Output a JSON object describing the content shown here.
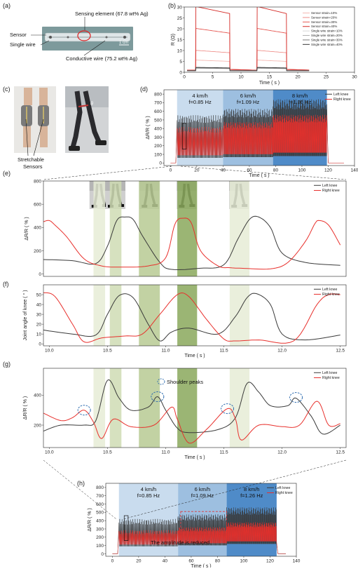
{
  "panels": {
    "a": {
      "label": "(a)",
      "sensing_element": "Sensing element (67.8 wt% Ag)",
      "sensor": "Sensor",
      "single_wire": "Single wire",
      "conductive_wire": "Conductive wire (75.2 wt% Ag)",
      "scale": "1 cm"
    },
    "b": {
      "label": "(b)"
    },
    "c": {
      "label": "(c)",
      "stretchable": "Stretchable",
      "sensors": "Sensors"
    },
    "d": {
      "label": "(d)"
    },
    "e": {
      "label": "(e)"
    },
    "f": {
      "label": "(f)"
    },
    "g": {
      "label": "(g)",
      "shoulder_peaks": "Shoulder peaks"
    },
    "h": {
      "label": "(h)",
      "amplitude_note": "The amplitude is reduced."
    }
  },
  "speed_bands": [
    {
      "speed": "4 km/h",
      "freq": "f=0.85 Hz"
    },
    {
      "speed": "6 km/h",
      "freq": "f=1.09 Hz"
    },
    {
      "speed": "8 km/h",
      "freq": "f=1.26 Hz"
    }
  ],
  "colors": {
    "left": "#3a3a3a",
    "right": "#e8302c",
    "band1": "#c9dcee",
    "band2": "#9dbfe0",
    "band3": "#4f8bc8",
    "green1": "#e6ecd6",
    "green2": "#cfdcb4",
    "green3": "#b7ca93",
    "green4": "#8aa85c"
  },
  "chart_data": [
    {
      "id": "b",
      "type": "line",
      "xlabel": "Time ( s )",
      "ylabel": "R (Ω)",
      "xlim": [
        0,
        30
      ],
      "ylim": [
        0,
        30
      ],
      "x_ticks": [
        "0",
        "5",
        "10",
        "15",
        "20",
        "25",
        "30"
      ],
      "y_ticks": [
        "0",
        "5",
        "10",
        "15",
        "20",
        "25",
        "30"
      ],
      "series": [
        {
          "name": "Sensor strain=10%",
          "plateau": 5
        },
        {
          "name": "Sensor strain=20%",
          "plateau": 9
        },
        {
          "name": "Sensor strain=30%",
          "plateau": 18
        },
        {
          "name": "Sensor strain=40%",
          "plateau": 27
        },
        {
          "name": "Single wire strain=10%",
          "plateau": 1.6
        },
        {
          "name": "Single wire strain=20%",
          "plateau": 1.7
        },
        {
          "name": "Single wire strain=30%",
          "plateau": 1.8
        },
        {
          "name": "Single wire strain=40%",
          "plateau": 2.0
        }
      ]
    },
    {
      "id": "d",
      "type": "line",
      "xlabel": "Time ( s )",
      "ylabel": "ΔR/R ( % )",
      "xlim": [
        -5,
        140
      ],
      "ylim": [
        -30,
        850
      ],
      "x_ticks": [
        "0",
        "20",
        "40",
        "60",
        "80",
        "100",
        "120",
        "140"
      ],
      "y_ticks": [
        "0",
        "100",
        "200",
        "300",
        "400",
        "500",
        "600",
        "700",
        "800"
      ],
      "bands": [
        [
          5,
          40
        ],
        [
          40,
          78
        ],
        [
          78,
          119
        ]
      ],
      "series": [
        {
          "name": "Left knee",
          "low": 80,
          "high": 740
        },
        {
          "name": "Right knee",
          "low": 120,
          "high": 560
        }
      ]
    },
    {
      "id": "e",
      "type": "line",
      "ylabel": "ΔR/R ( % )",
      "xlim": [
        9.95,
        12.55
      ],
      "ylim": [
        -20,
        800
      ],
      "y_ticks": [
        "0",
        "200",
        "400",
        "600",
        "800"
      ],
      "series": [
        {
          "name": "Left knee",
          "x": [
            9.95,
            10.2,
            10.4,
            10.5,
            10.58,
            10.65,
            10.72,
            10.8,
            10.95,
            11.05,
            11.3,
            11.5,
            11.62,
            11.72,
            11.8,
            11.9,
            12.0,
            12.2,
            12.5
          ],
          "y": [
            125,
            115,
            90,
            240,
            460,
            490,
            470,
            330,
            100,
            40,
            50,
            80,
            300,
            470,
            490,
            400,
            180,
            100,
            75
          ]
        },
        {
          "name": "Right knee",
          "x": [
            9.95,
            10.0,
            10.05,
            10.15,
            10.3,
            10.45,
            10.6,
            10.85,
            11.0,
            11.08,
            11.15,
            11.22,
            11.3,
            11.45,
            11.55,
            11.65,
            11.9,
            12.05,
            12.2,
            12.28,
            12.32,
            12.4,
            12.5
          ],
          "y": [
            450,
            460,
            420,
            320,
            130,
            70,
            60,
            70,
            140,
            430,
            480,
            440,
            200,
            70,
            55,
            50,
            45,
            100,
            280,
            430,
            460,
            420,
            250
          ]
        }
      ]
    },
    {
      "id": "f",
      "type": "line",
      "xlabel": "Time ( s )",
      "ylabel": "Joint angle of knee ( ° )",
      "xlim": [
        9.95,
        12.55
      ],
      "ylim": [
        -2,
        60
      ],
      "x_ticks": [
        "10.0",
        "10.5",
        "11.0",
        "11.5",
        "12.0",
        "12.5"
      ],
      "y_ticks": [
        "0",
        "10",
        "20",
        "30",
        "40",
        "50"
      ],
      "series": [
        {
          "name": "Left knee",
          "x": [
            9.95,
            10.2,
            10.4,
            10.5,
            10.6,
            10.72,
            10.85,
            10.95,
            11.05,
            11.2,
            11.45,
            11.6,
            11.7,
            11.78,
            11.9,
            12.0,
            12.2,
            12.5
          ],
          "y": [
            14,
            10,
            9,
            30,
            49,
            47,
            20,
            3,
            12,
            16,
            10,
            28,
            47,
            51,
            40,
            10,
            4,
            9
          ]
        },
        {
          "name": "Right knee",
          "x": [
            9.95,
            10.05,
            10.2,
            10.3,
            10.45,
            10.65,
            10.8,
            10.95,
            11.1,
            11.2,
            11.35,
            11.5,
            11.6,
            11.8,
            12.1,
            12.3,
            12.4,
            12.5
          ],
          "y": [
            52,
            48,
            20,
            2,
            6,
            8,
            10,
            30,
            50,
            48,
            25,
            5,
            3,
            4,
            3,
            40,
            50,
            50
          ]
        }
      ]
    },
    {
      "id": "g",
      "type": "line",
      "xlabel": "Time ( s )",
      "ylabel": "ΔR/R ( % )",
      "xlim": [
        9.95,
        12.55
      ],
      "ylim": [
        50,
        580
      ],
      "x_ticks": [
        "10.0",
        "10.5",
        "11.0",
        "11.5",
        "12.0",
        "12.5"
      ],
      "y_ticks": [
        "200",
        "400"
      ],
      "series": [
        {
          "name": "Left knee",
          "x": [
            9.95,
            10.1,
            10.3,
            10.4,
            10.5,
            10.6,
            10.7,
            10.85,
            10.93,
            11.0,
            11.1,
            11.2,
            11.45,
            11.6,
            11.7,
            11.8,
            11.9,
            12.05,
            12.12,
            12.25,
            12.35,
            12.5
          ],
          "y": [
            160,
            200,
            200,
            230,
            500,
            380,
            300,
            320,
            390,
            300,
            180,
            150,
            170,
            250,
            480,
            420,
            330,
            330,
            380,
            260,
            140,
            200
          ]
        },
        {
          "name": "Right knee",
          "x": [
            9.95,
            10.1,
            10.2,
            10.3,
            10.38,
            10.45,
            10.55,
            10.7,
            10.9,
            11.05,
            11.1,
            11.2,
            11.35,
            11.53,
            11.6,
            11.65,
            11.8,
            12.0,
            12.15,
            12.3,
            12.4,
            12.5
          ],
          "y": [
            280,
            230,
            250,
            300,
            220,
            110,
            240,
            190,
            200,
            320,
            240,
            80,
            170,
            310,
            240,
            100,
            200,
            190,
            200,
            360,
            200,
            210
          ]
        }
      ]
    },
    {
      "id": "h",
      "type": "line",
      "xlabel": "Time ( s )",
      "ylabel": "ΔR/R ( % )",
      "xlim": [
        -5,
        140
      ],
      "ylim": [
        -30,
        850
      ],
      "x_ticks": [
        "0",
        "20",
        "40",
        "60",
        "80",
        "100",
        "120",
        "140"
      ],
      "y_ticks": [
        "0",
        "100",
        "200",
        "300",
        "400",
        "500",
        "600",
        "700",
        "800"
      ],
      "bands": [
        [
          5,
          50
        ],
        [
          50,
          87
        ],
        [
          87,
          125
        ]
      ],
      "series": [
        {
          "name": "Left knee",
          "low": 120,
          "high": 560
        },
        {
          "name": "Right knee",
          "low": 150,
          "high": 380
        }
      ]
    }
  ]
}
